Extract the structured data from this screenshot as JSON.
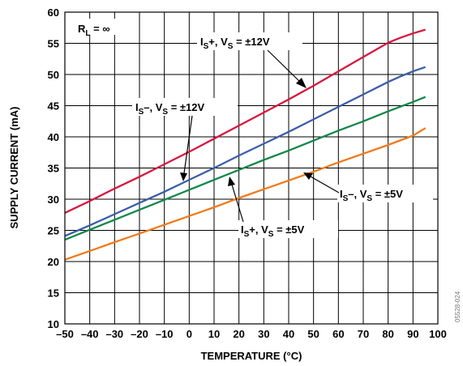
{
  "chart_data": {
    "type": "line",
    "title": "",
    "xlabel": "TEMPERATURE (°C)",
    "ylabel": "SUPPLY CURRENT (mA)",
    "xlim": [
      -50,
      100
    ],
    "ylim": [
      10,
      60
    ],
    "xticks": [
      -50,
      -40,
      -30,
      -20,
      -10,
      0,
      10,
      20,
      30,
      40,
      50,
      60,
      70,
      80,
      90,
      100
    ],
    "yticks": [
      10,
      15,
      20,
      25,
      30,
      35,
      40,
      45,
      50,
      55,
      60
    ],
    "grid": true,
    "legend": "none",
    "series": [
      {
        "id": "is_plus_12",
        "color": "#d7173f",
        "x": [
          -50,
          -40,
          -30,
          -20,
          -10,
          0,
          10,
          20,
          30,
          40,
          50,
          60,
          70,
          80,
          85,
          90,
          95
        ],
        "y": [
          27.8,
          29.7,
          31.7,
          33.6,
          35.6,
          37.6,
          39.7,
          41.8,
          43.9,
          46.0,
          48.2,
          50.5,
          52.8,
          55.1,
          55.9,
          56.6,
          57.2
        ]
      },
      {
        "id": "is_minus_12",
        "color": "#3a5ea8",
        "x": [
          -50,
          -40,
          -30,
          -20,
          -10,
          0,
          10,
          20,
          30,
          40,
          50,
          60,
          70,
          80,
          85,
          90,
          95
        ],
        "y": [
          24.1,
          25.8,
          27.6,
          29.4,
          31.2,
          33.1,
          35.0,
          37.0,
          38.9,
          40.8,
          42.8,
          44.8,
          46.8,
          48.8,
          49.7,
          50.5,
          51.2
        ]
      },
      {
        "id": "is_plus_5",
        "color": "#13874b",
        "x": [
          -50,
          -40,
          -30,
          -20,
          -10,
          0,
          10,
          20,
          30,
          40,
          50,
          60,
          70,
          80,
          90,
          95
        ],
        "y": [
          23.5,
          25.1,
          26.7,
          28.3,
          29.9,
          31.5,
          33.1,
          34.7,
          36.3,
          37.8,
          39.4,
          41.0,
          42.5,
          44.1,
          45.6,
          46.4
        ]
      },
      {
        "id": "is_minus_5",
        "color": "#f07a1a",
        "x": [
          -50,
          -40,
          -30,
          -20,
          -10,
          0,
          10,
          20,
          30,
          40,
          50,
          60,
          70,
          80,
          90,
          95
        ],
        "y": [
          20.3,
          21.7,
          23.1,
          24.5,
          25.9,
          27.3,
          28.7,
          30.2,
          31.6,
          33.0,
          34.4,
          35.9,
          37.3,
          38.7,
          40.2,
          41.4
        ]
      }
    ],
    "annotations": {
      "rl": {
        "main": "R",
        "sub": "L",
        "rest": " = ∞"
      },
      "is_plus_12": {
        "a": "I",
        "sub1": "S",
        "b": "+, V",
        "sub2": "S",
        "c": " = ±12V"
      },
      "is_minus_12": {
        "a": "I",
        "sub1": "S",
        "b": "–, V",
        "sub2": "S",
        "c": " = ±12V"
      },
      "is_plus_5": {
        "a": "I",
        "sub1": "S",
        "b": "+, V",
        "sub2": "S",
        "c": " = ±5V"
      },
      "is_minus_5": {
        "a": "I",
        "sub1": "S",
        "b": "–, V",
        "sub2": "S",
        "c": " = ±5V"
      }
    },
    "figure_code": "05528-024"
  }
}
